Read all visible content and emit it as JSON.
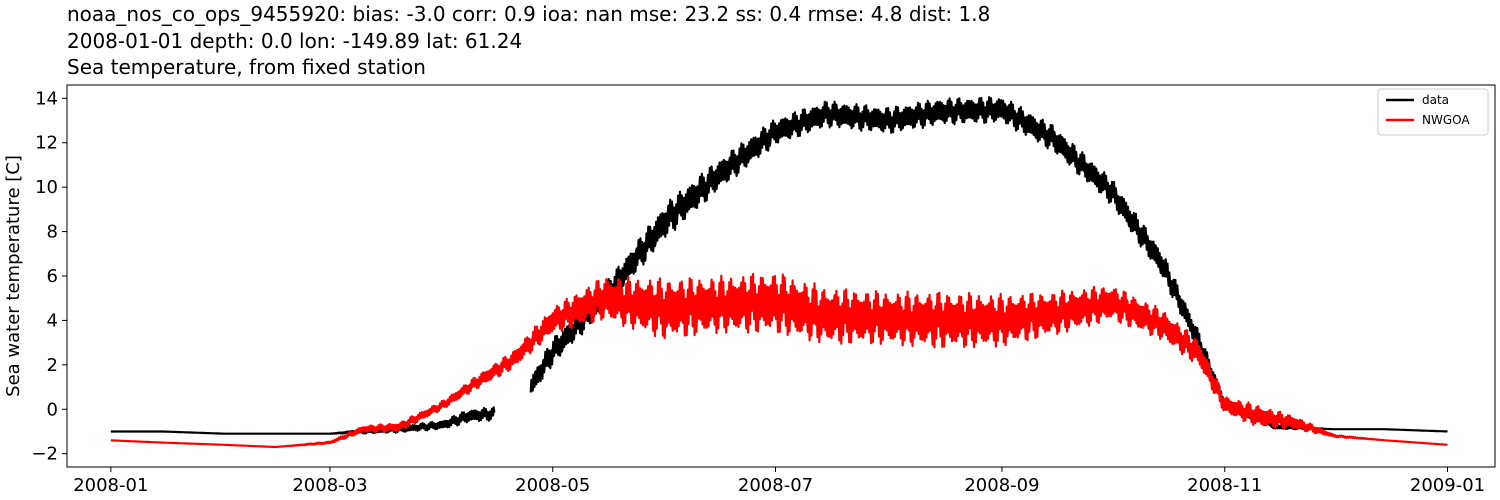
{
  "header": {
    "line1": "noaa_nos_co_ops_9455920: bias: -3.0  corr: 0.9  ioa: nan  mse: 23.2  ss: 0.4  rmse: 4.8  dist: 1.8",
    "line2": "2008-01-01 depth: 0.0 lon: -149.89 lat: 61.24",
    "line3": "Sea temperature, from fixed station"
  },
  "chart_data": {
    "type": "line",
    "title": "Sea temperature, from fixed station",
    "xlabel": "",
    "ylabel": "Sea water temperature [C]",
    "xlim": [
      "2007-12-20",
      "2009-01-14"
    ],
    "ylim": [
      -2.6,
      14.6
    ],
    "x_ticks": [
      "2008-01",
      "2008-03",
      "2008-05",
      "2008-07",
      "2008-09",
      "2008-11",
      "2009-01"
    ],
    "y_ticks": [
      -2,
      0,
      2,
      4,
      6,
      8,
      10,
      12,
      14
    ],
    "grid": false,
    "legend": "top-right",
    "series": [
      {
        "name": "data",
        "color": "#000000",
        "dates": [
          "2008-01-01",
          "2008-01-15",
          "2008-02-01",
          "2008-02-15",
          "2008-03-01",
          "2008-03-10",
          "2008-03-20",
          "2008-04-01",
          "2008-04-08",
          "2008-04-15",
          "2008-04-25",
          "2008-05-01",
          "2008-05-15",
          "2008-06-01",
          "2008-06-15",
          "2008-07-01",
          "2008-07-15",
          "2008-08-01",
          "2008-08-15",
          "2008-09-01",
          "2008-09-15",
          "2008-10-01",
          "2008-10-15",
          "2008-10-25",
          "2008-11-01",
          "2008-11-15",
          "2008-12-01",
          "2008-12-15",
          "2009-01-01"
        ],
        "values": [
          -1.0,
          -1.0,
          -1.1,
          -1.1,
          -1.1,
          -1.0,
          -0.9,
          -0.7,
          -0.3,
          -0.2,
          1.0,
          2.6,
          5.0,
          8.5,
          10.5,
          12.5,
          13.3,
          13.0,
          13.4,
          13.5,
          12.2,
          9.8,
          6.5,
          3.0,
          0.2,
          -0.8,
          -0.9,
          -0.9,
          -1.0
        ],
        "amplitude": [
          0,
          0,
          0,
          0,
          0,
          0.1,
          0.15,
          0.2,
          0.3,
          0.3,
          0.5,
          0.6,
          0.6,
          0.8,
          0.7,
          0.6,
          0.6,
          0.6,
          0.6,
          0.6,
          0.6,
          0.6,
          0.6,
          0.5,
          0.3,
          0.1,
          0,
          0,
          0
        ],
        "gaps": [
          [
            "2008-04-15",
            "2008-04-25"
          ]
        ]
      },
      {
        "name": "NWGOA",
        "color": "#ff0000",
        "dates": [
          "2008-01-01",
          "2008-01-15",
          "2008-02-01",
          "2008-02-15",
          "2008-03-01",
          "2008-03-10",
          "2008-03-20",
          "2008-04-01",
          "2008-04-10",
          "2008-04-20",
          "2008-05-01",
          "2008-05-15",
          "2008-06-01",
          "2008-06-15",
          "2008-07-01",
          "2008-07-15",
          "2008-08-01",
          "2008-08-15",
          "2008-09-01",
          "2008-09-15",
          "2008-10-01",
          "2008-10-15",
          "2008-10-25",
          "2008-11-01",
          "2008-11-10",
          "2008-11-20",
          "2008-12-01",
          "2008-12-15",
          "2009-01-01"
        ],
        "values": [
          -1.4,
          -1.5,
          -1.6,
          -1.7,
          -1.5,
          -0.9,
          -0.8,
          0.2,
          1.2,
          2.2,
          4.0,
          5.0,
          4.5,
          4.7,
          4.8,
          4.2,
          4.1,
          4.0,
          4.0,
          4.3,
          4.8,
          3.8,
          2.5,
          0.2,
          -0.3,
          -0.6,
          -1.2,
          -1.4,
          -1.6
        ],
        "amplitude": [
          0,
          0,
          0,
          0,
          0.05,
          0.15,
          0.2,
          0.2,
          0.3,
          0.4,
          0.6,
          1.0,
          1.4,
          1.3,
          1.4,
          1.3,
          1.2,
          1.3,
          1.2,
          1.0,
          0.8,
          0.7,
          0.6,
          0.4,
          0.5,
          0.3,
          0.05,
          0,
          0
        ]
      }
    ]
  }
}
